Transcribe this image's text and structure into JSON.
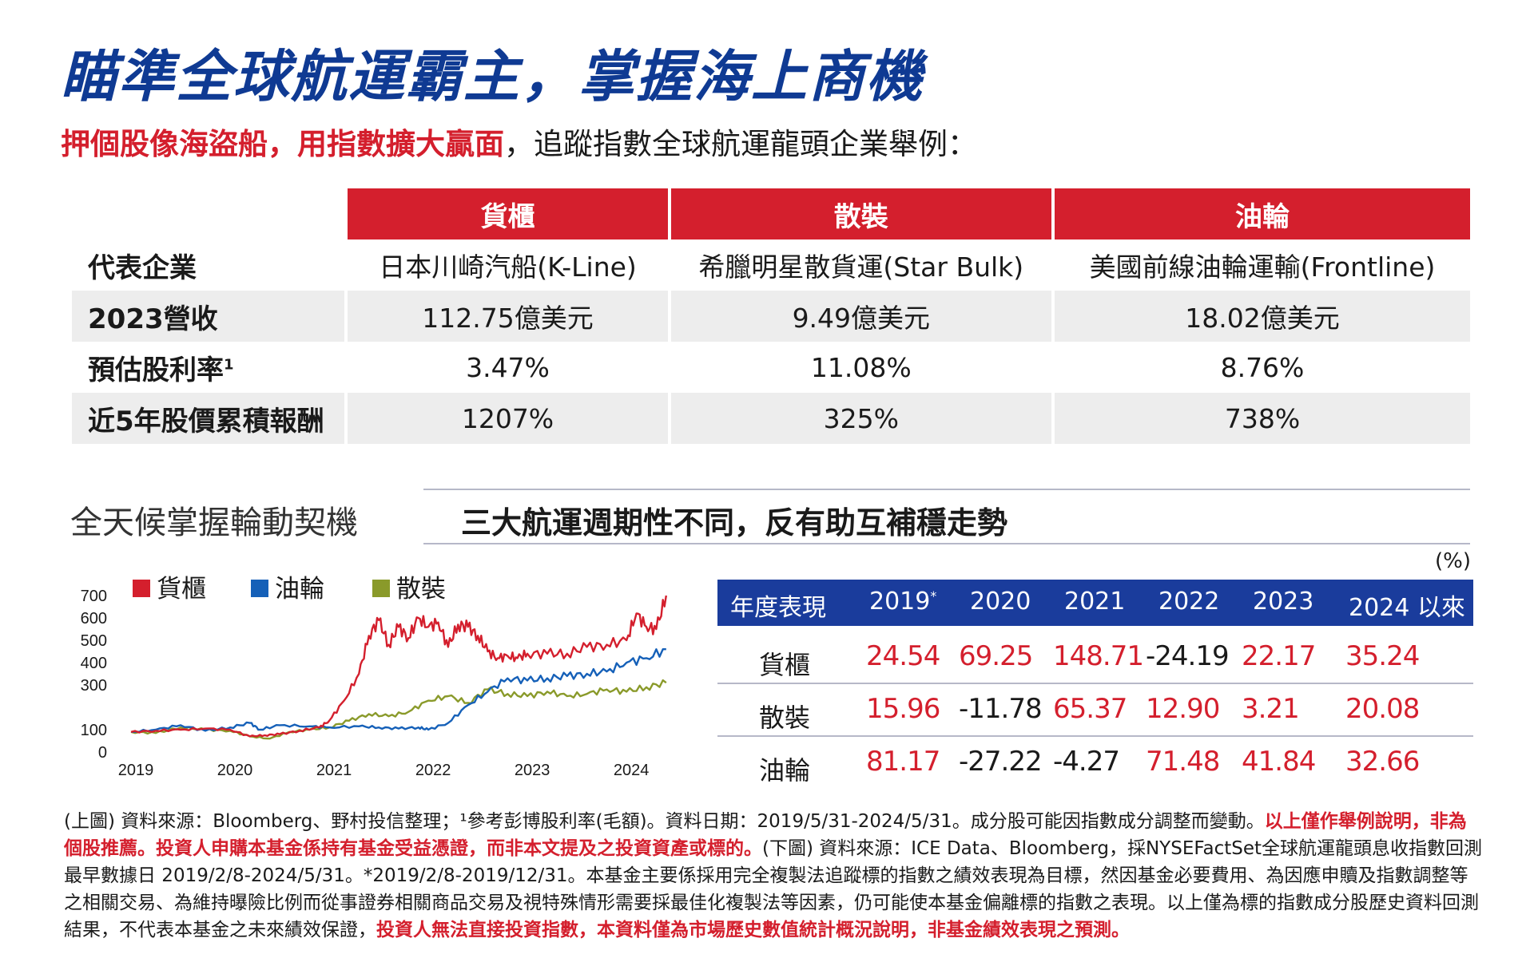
{
  "title": "瞄準全球航運霸主，掌握海上商機",
  "subtitle": {
    "highlight": "押個股像海盜船，用指數擴大贏面",
    "rest": "，追蹤指數全球航運龍頭企業舉例："
  },
  "company_table": {
    "headers": [
      "",
      "貨櫃",
      "散裝",
      "油輪"
    ],
    "rows": [
      {
        "label": "代表企業",
        "sup": "",
        "values": [
          "日本川崎汽船(K-Line)",
          "希臘明星散貨運(Star Bulk)",
          "美國前線油輪運輸(Frontline)"
        ]
      },
      {
        "label": "2023營收",
        "sup": "",
        "values": [
          "112.75億美元",
          "9.49億美元",
          "18.02億美元"
        ]
      },
      {
        "label": "預估股利率",
        "sup": "1",
        "values": [
          "3.47%",
          "11.08%",
          "8.76%"
        ]
      },
      {
        "label": "近5年股價累積報酬",
        "sup": "",
        "values": [
          "1207%",
          "325%",
          "738%"
        ]
      }
    ]
  },
  "left_heading": "全天候掌握輪動契機",
  "right_heading": "三大航運週期性不同，反有助互補穩走勢",
  "colors": {
    "container": "#d41f2d",
    "tanker": "#1560b8",
    "bulk": "#8a9a2a",
    "navy": "#1a3c9c",
    "title": "#0f3a93"
  },
  "chart_data": {
    "type": "line",
    "series": [
      {
        "name": "貨櫃",
        "color": "#d41f2d",
        "x": [
          2019.0,
          2019.25,
          2019.5,
          2019.75,
          2020.0,
          2020.2,
          2020.35,
          2020.5,
          2020.7,
          2020.9,
          2021.0,
          2021.15,
          2021.3,
          2021.4,
          2021.5,
          2021.6,
          2021.7,
          2021.8,
          2021.9,
          2022.0,
          2022.1,
          2022.2,
          2022.3,
          2022.4,
          2022.5,
          2022.6,
          2022.7,
          2022.8,
          2022.9,
          2023.0,
          2023.2,
          2023.4,
          2023.6,
          2023.8,
          2024.0,
          2024.1,
          2024.2,
          2024.3,
          2024.4
        ],
        "values": [
          90,
          95,
          100,
          105,
          100,
          70,
          75,
          80,
          95,
          110,
          140,
          230,
          350,
          520,
          590,
          480,
          560,
          510,
          600,
          560,
          580,
          470,
          570,
          560,
          520,
          450,
          420,
          430,
          420,
          440,
          440,
          440,
          470,
          480,
          500,
          620,
          560,
          550,
          700
        ]
      },
      {
        "name": "油輪",
        "color": "#1560b8",
        "x": [
          2019.0,
          2019.25,
          2019.5,
          2019.75,
          2020.0,
          2020.2,
          2020.3,
          2020.5,
          2020.8,
          2021.0,
          2021.3,
          2021.5,
          2021.7,
          2021.9,
          2022.0,
          2022.2,
          2022.4,
          2022.6,
          2022.8,
          2023.0,
          2023.2,
          2023.4,
          2023.6,
          2023.8,
          2024.0,
          2024.2,
          2024.4
        ],
        "values": [
          90,
          100,
          120,
          95,
          110,
          130,
          100,
          120,
          115,
          110,
          115,
          110,
          105,
          110,
          100,
          130,
          210,
          270,
          330,
          320,
          330,
          340,
          350,
          360,
          400,
          420,
          460
        ]
      },
      {
        "name": "散裝",
        "color": "#8a9a2a",
        "x": [
          2019.0,
          2019.25,
          2019.5,
          2019.75,
          2020.0,
          2020.2,
          2020.4,
          2020.6,
          2020.8,
          2021.0,
          2021.2,
          2021.4,
          2021.6,
          2021.8,
          2022.0,
          2022.2,
          2022.4,
          2022.6,
          2022.8,
          2023.0,
          2023.2,
          2023.4,
          2023.6,
          2023.8,
          2024.0,
          2024.2,
          2024.4
        ],
        "values": [
          90,
          85,
          110,
          100,
          95,
          70,
          60,
          90,
          100,
          110,
          140,
          170,
          160,
          180,
          230,
          250,
          220,
          280,
          260,
          250,
          270,
          250,
          260,
          280,
          270,
          290,
          310
        ]
      }
    ],
    "xticks": [
      "2019",
      "2020",
      "2021",
      "2022",
      "2023",
      "2024"
    ],
    "yticks": [
      "0",
      "100",
      "300",
      "400",
      "500",
      "600",
      "700"
    ],
    "ylim": [
      0,
      700
    ],
    "xlim": [
      2019.0,
      2024.45
    ],
    "legend": "top"
  },
  "perf_table": {
    "unit": "(%)",
    "header_label": "年度表現",
    "years": [
      "2019",
      "2020",
      "2021",
      "2022",
      "2023",
      "2024 以來"
    ],
    "year_sup": "*",
    "rows": [
      {
        "label": "貨櫃",
        "values": [
          "24.54",
          "69.25",
          "148.71",
          "-24.19",
          "22.17",
          "35.24"
        ]
      },
      {
        "label": "散裝",
        "values": [
          "15.96",
          "-11.78",
          "65.37",
          "12.90",
          "3.21",
          "20.08"
        ]
      },
      {
        "label": "油輪",
        "values": [
          "81.17",
          "-27.22",
          "-4.27",
          "71.48",
          "41.84",
          "32.66"
        ]
      }
    ]
  },
  "footnote": {
    "p1": "(上圖) 資料來源：Bloomberg、野村投信整理；¹參考彭博股利率(毛額)。資料日期：2019/5/31-2024/5/31。成分股可能因指數成分調整而變動。",
    "p2": "以上僅作舉例說明，非為個股推薦。投資人申購本基金係持有基金受益憑證，而非本文提及之投資資產或標的。",
    "p3": "(下圖) 資料來源：ICE Data、Bloomberg，採NYSEFactSet全球航運龍頭息收指數回測最早數據日 2019/2/8-2024/5/31。*2019/2/8-2019/12/31。本基金主要係採用完全複製法追蹤標的指數之績效表現為目標，然因基金必要費用、為因應申贖及指數調整等之相關交易、為維持曝險比例而從事證券相關商品交易及視特殊情形需要採最佳化複製法等因素，仍可能使本基金偏離標的指數之表現。以上僅為標的指數成分股歷史資料回測結果，不代表本基金之未來績效保證，",
    "p4": "投資人無法直接投資指數，本資料僅為市場歷史數值統計概況說明，非基金績效表現之預測。"
  }
}
